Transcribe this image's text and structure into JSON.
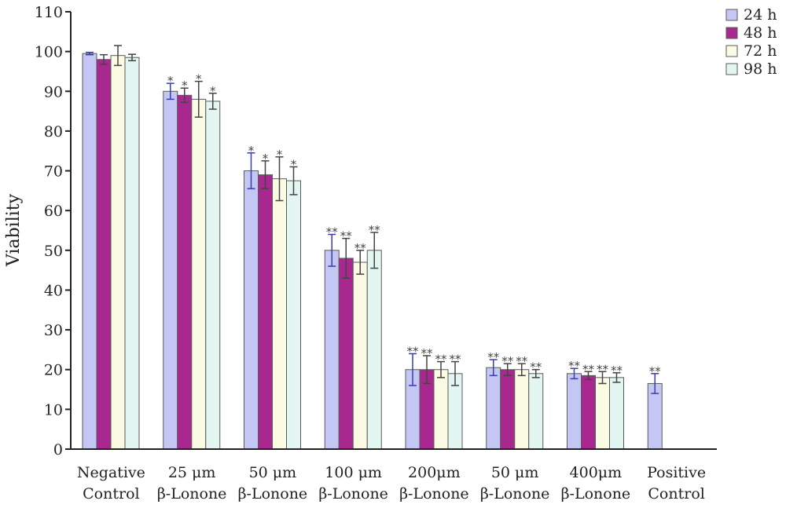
{
  "chart_data": {
    "type": "bar",
    "title": "",
    "xlabel": "",
    "ylabel": "Viability",
    "ylim": [
      0,
      110
    ],
    "yticks": [
      0,
      10,
      20,
      30,
      40,
      50,
      60,
      70,
      80,
      90,
      100,
      110
    ],
    "grid": false,
    "legend_position": "top-right",
    "categories": [
      [
        "Negative",
        "Control"
      ],
      [
        "25 μm",
        "β-Lonone"
      ],
      [
        "50 μm",
        "β-Lonone"
      ],
      [
        "100 μm",
        "β-Lonone"
      ],
      [
        "200μm",
        "β-Lonone"
      ],
      [
        "50 μm",
        "β-Lonone"
      ],
      [
        "400μm",
        "β-Lonone"
      ],
      [
        "Positive",
        "Control"
      ]
    ],
    "series": [
      {
        "name": "24 h",
        "color": "#c4c6f4",
        "values": [
          99.5,
          90,
          70,
          50,
          20,
          20.5,
          19,
          16.5
        ],
        "errors": [
          0.3,
          2.0,
          4.5,
          4.0,
          4.0,
          2.0,
          1.3,
          2.5
        ],
        "significance": [
          "",
          "*",
          "*",
          "**",
          "**",
          "**",
          "**",
          "**"
        ]
      },
      {
        "name": "48 h",
        "color": "#a8288f",
        "values": [
          98,
          89,
          69,
          48,
          20,
          20,
          18.5,
          null
        ],
        "errors": [
          1.2,
          1.8,
          3.5,
          5.0,
          3.5,
          1.5,
          1.0,
          null
        ],
        "significance": [
          "",
          "*",
          "*",
          "**",
          "**",
          "**",
          "**",
          ""
        ]
      },
      {
        "name": "72 h",
        "color": "#fbfbe3",
        "values": [
          99,
          88,
          68,
          47,
          20,
          20,
          18,
          null
        ],
        "errors": [
          2.5,
          4.5,
          5.5,
          3.0,
          2.0,
          1.5,
          1.5,
          null
        ],
        "significance": [
          "",
          "*",
          "*",
          "**",
          "**",
          "**",
          "**",
          ""
        ]
      },
      {
        "name": "98 h",
        "color": "#e4f6f2",
        "values": [
          98.5,
          87.5,
          67.5,
          50,
          19,
          19,
          18,
          null
        ],
        "errors": [
          0.8,
          2.0,
          3.5,
          4.5,
          3.0,
          1.0,
          1.2,
          null
        ],
        "significance": [
          "",
          "*",
          "*",
          "**",
          "**",
          "**",
          "**",
          ""
        ]
      }
    ]
  }
}
